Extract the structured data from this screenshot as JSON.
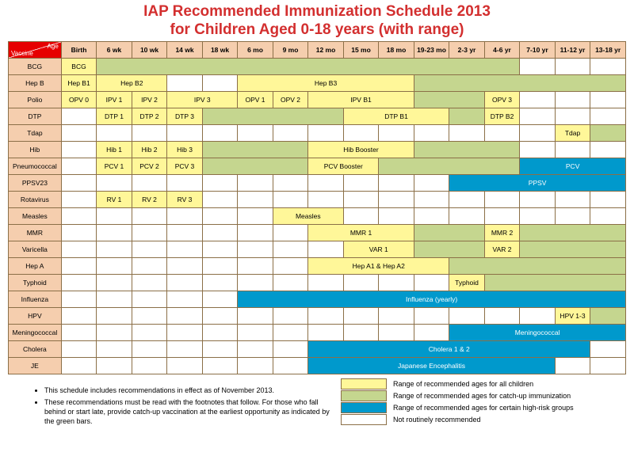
{
  "title_l1": "IAP Recommended Immunization Schedule 2013",
  "title_l2": "for Children Aged 0-18 years (with range)",
  "title_size": 19,
  "colors": {
    "header": "#f5ceae",
    "rowhead": "#f5ceae",
    "yellow": "#fff799",
    "green": "#c5d68f",
    "blue": "#0099cc",
    "white": "#ffffff",
    "border": "#8b6f47",
    "title": "#d32f2f"
  },
  "ages": [
    "Birth",
    "6 wk",
    "10 wk",
    "14 wk",
    "18 wk",
    "6 mo",
    "9 mo",
    "12 mo",
    "15 mo",
    "18 mo",
    "19-23 mo",
    "2-3 yr",
    "4-6 yr",
    "7-10 yr",
    "11-12 yr",
    "13-18 yr"
  ],
  "vaccines": [
    "BCG",
    "Hep B",
    "Polio",
    "DTP",
    "Tdap",
    "Hib",
    "Pneumococcal",
    "PPSV23",
    "Rotavirus",
    "Measles",
    "MMR",
    "Varicella",
    "Hep A",
    "Typhoid",
    "Influenza",
    "HPV",
    "Meningococcal",
    "Cholera",
    "JE"
  ],
  "rows": [
    [
      {
        "c": "y",
        "s": 1,
        "t": "BCG"
      },
      {
        "c": "g",
        "s": 12
      },
      {
        "c": "w",
        "s": 1
      },
      {
        "c": "w",
        "s": 1
      },
      {
        "c": "w",
        "s": 1
      }
    ],
    [
      {
        "c": "y",
        "s": 1,
        "t": "Hep B1"
      },
      {
        "c": "y",
        "s": 2,
        "t": "Hep B2"
      },
      {
        "c": "w",
        "s": 1
      },
      {
        "c": "w",
        "s": 1
      },
      {
        "c": "y",
        "s": 5,
        "t": "Hep B3"
      },
      {
        "c": "g",
        "s": 6
      }
    ],
    [
      {
        "c": "y",
        "s": 1,
        "t": "OPV 0"
      },
      {
        "c": "y",
        "s": 1,
        "t": "IPV 1"
      },
      {
        "c": "y",
        "s": 1,
        "t": "IPV 2"
      },
      {
        "c": "y",
        "s": 2,
        "t": "IPV 3"
      },
      {
        "c": "y",
        "s": 1,
        "t": "OPV 1"
      },
      {
        "c": "y",
        "s": 1,
        "t": "OPV 2"
      },
      {
        "c": "y",
        "s": 3,
        "t": "IPV B1"
      },
      {
        "c": "g",
        "s": 2
      },
      {
        "c": "y",
        "s": 1,
        "t": "OPV 3"
      },
      {
        "c": "w",
        "s": 1
      },
      {
        "c": "w",
        "s": 1
      },
      {
        "c": "w",
        "s": 1
      }
    ],
    [
      {
        "c": "w",
        "s": 1
      },
      {
        "c": "y",
        "s": 1,
        "t": "DTP 1"
      },
      {
        "c": "y",
        "s": 1,
        "t": "DTP 2"
      },
      {
        "c": "y",
        "s": 1,
        "t": "DTP 3"
      },
      {
        "c": "g",
        "s": 4
      },
      {
        "c": "y",
        "s": 3,
        "t": "DTP B1"
      },
      {
        "c": "g",
        "s": 1
      },
      {
        "c": "y",
        "s": 1,
        "t": "DTP B2"
      },
      {
        "c": "w",
        "s": 1
      },
      {
        "c": "w",
        "s": 1
      },
      {
        "c": "w",
        "s": 1
      }
    ],
    [
      {
        "c": "w",
        "s": 1
      },
      {
        "c": "w",
        "s": 1
      },
      {
        "c": "w",
        "s": 1
      },
      {
        "c": "w",
        "s": 1
      },
      {
        "c": "w",
        "s": 1
      },
      {
        "c": "w",
        "s": 1
      },
      {
        "c": "w",
        "s": 1
      },
      {
        "c": "w",
        "s": 1
      },
      {
        "c": "w",
        "s": 1
      },
      {
        "c": "w",
        "s": 1
      },
      {
        "c": "w",
        "s": 1
      },
      {
        "c": "w",
        "s": 1
      },
      {
        "c": "w",
        "s": 1
      },
      {
        "c": "w",
        "s": 1
      },
      {
        "c": "y",
        "s": 1,
        "t": "Tdap"
      },
      {
        "c": "g",
        "s": 1
      }
    ],
    [
      {
        "c": "w",
        "s": 1
      },
      {
        "c": "y",
        "s": 1,
        "t": "Hib 1"
      },
      {
        "c": "y",
        "s": 1,
        "t": "Hib 2"
      },
      {
        "c": "y",
        "s": 1,
        "t": "Hib 3"
      },
      {
        "c": "g",
        "s": 3
      },
      {
        "c": "y",
        "s": 3,
        "t": "Hib Booster"
      },
      {
        "c": "g",
        "s": 3
      },
      {
        "c": "w",
        "s": 1
      },
      {
        "c": "w",
        "s": 1
      },
      {
        "c": "w",
        "s": 1
      }
    ],
    [
      {
        "c": "w",
        "s": 1
      },
      {
        "c": "y",
        "s": 1,
        "t": "PCV 1"
      },
      {
        "c": "y",
        "s": 1,
        "t": "PCV 2"
      },
      {
        "c": "y",
        "s": 1,
        "t": "PCV 3"
      },
      {
        "c": "g",
        "s": 3
      },
      {
        "c": "y",
        "s": 2,
        "t": "PCV Booster"
      },
      {
        "c": "g",
        "s": 4
      },
      {
        "c": "b",
        "s": 3,
        "t": "PCV"
      }
    ],
    [
      {
        "c": "w",
        "s": 1
      },
      {
        "c": "w",
        "s": 1
      },
      {
        "c": "w",
        "s": 1
      },
      {
        "c": "w",
        "s": 1
      },
      {
        "c": "w",
        "s": 1
      },
      {
        "c": "w",
        "s": 1
      },
      {
        "c": "w",
        "s": 1
      },
      {
        "c": "w",
        "s": 1
      },
      {
        "c": "w",
        "s": 1
      },
      {
        "c": "w",
        "s": 1
      },
      {
        "c": "w",
        "s": 1
      },
      {
        "c": "b",
        "s": 5,
        "t": "PPSV"
      }
    ],
    [
      {
        "c": "w",
        "s": 1
      },
      {
        "c": "y",
        "s": 1,
        "t": "RV 1"
      },
      {
        "c": "y",
        "s": 1,
        "t": "RV 2"
      },
      {
        "c": "y",
        "s": 1,
        "t": "RV 3"
      },
      {
        "c": "w",
        "s": 1
      },
      {
        "c": "w",
        "s": 1
      },
      {
        "c": "w",
        "s": 1
      },
      {
        "c": "w",
        "s": 1
      },
      {
        "c": "w",
        "s": 1
      },
      {
        "c": "w",
        "s": 1
      },
      {
        "c": "w",
        "s": 1
      },
      {
        "c": "w",
        "s": 1
      },
      {
        "c": "w",
        "s": 1
      },
      {
        "c": "w",
        "s": 1
      },
      {
        "c": "w",
        "s": 1
      },
      {
        "c": "w",
        "s": 1
      }
    ],
    [
      {
        "c": "w",
        "s": 1
      },
      {
        "c": "w",
        "s": 1
      },
      {
        "c": "w",
        "s": 1
      },
      {
        "c": "w",
        "s": 1
      },
      {
        "c": "w",
        "s": 1
      },
      {
        "c": "w",
        "s": 1
      },
      {
        "c": "y",
        "s": 2,
        "t": "Measles"
      },
      {
        "c": "w",
        "s": 1
      },
      {
        "c": "w",
        "s": 1
      },
      {
        "c": "w",
        "s": 1
      },
      {
        "c": "w",
        "s": 1
      },
      {
        "c": "w",
        "s": 1
      },
      {
        "c": "w",
        "s": 1
      },
      {
        "c": "w",
        "s": 1
      },
      {
        "c": "w",
        "s": 1
      }
    ],
    [
      {
        "c": "w",
        "s": 1
      },
      {
        "c": "w",
        "s": 1
      },
      {
        "c": "w",
        "s": 1
      },
      {
        "c": "w",
        "s": 1
      },
      {
        "c": "w",
        "s": 1
      },
      {
        "c": "w",
        "s": 1
      },
      {
        "c": "w",
        "s": 1
      },
      {
        "c": "y",
        "s": 3,
        "t": "MMR 1"
      },
      {
        "c": "g",
        "s": 2
      },
      {
        "c": "y",
        "s": 1,
        "t": "MMR 2"
      },
      {
        "c": "g",
        "s": 3
      }
    ],
    [
      {
        "c": "w",
        "s": 1
      },
      {
        "c": "w",
        "s": 1
      },
      {
        "c": "w",
        "s": 1
      },
      {
        "c": "w",
        "s": 1
      },
      {
        "c": "w",
        "s": 1
      },
      {
        "c": "w",
        "s": 1
      },
      {
        "c": "w",
        "s": 1
      },
      {
        "c": "w",
        "s": 1
      },
      {
        "c": "y",
        "s": 2,
        "t": "VAR 1"
      },
      {
        "c": "g",
        "s": 2
      },
      {
        "c": "y",
        "s": 1,
        "t": "VAR 2"
      },
      {
        "c": "g",
        "s": 3
      }
    ],
    [
      {
        "c": "w",
        "s": 1
      },
      {
        "c": "w",
        "s": 1
      },
      {
        "c": "w",
        "s": 1
      },
      {
        "c": "w",
        "s": 1
      },
      {
        "c": "w",
        "s": 1
      },
      {
        "c": "w",
        "s": 1
      },
      {
        "c": "w",
        "s": 1
      },
      {
        "c": "y",
        "s": 4,
        "t": "Hep A1 & Hep A2"
      },
      {
        "c": "g",
        "s": 5
      }
    ],
    [
      {
        "c": "w",
        "s": 1
      },
      {
        "c": "w",
        "s": 1
      },
      {
        "c": "w",
        "s": 1
      },
      {
        "c": "w",
        "s": 1
      },
      {
        "c": "w",
        "s": 1
      },
      {
        "c": "w",
        "s": 1
      },
      {
        "c": "w",
        "s": 1
      },
      {
        "c": "w",
        "s": 1
      },
      {
        "c": "w",
        "s": 1
      },
      {
        "c": "w",
        "s": 1
      },
      {
        "c": "w",
        "s": 1
      },
      {
        "c": "y",
        "s": 1,
        "t": "Typhoid"
      },
      {
        "c": "g",
        "s": 4
      }
    ],
    [
      {
        "c": "w",
        "s": 1
      },
      {
        "c": "w",
        "s": 1
      },
      {
        "c": "w",
        "s": 1
      },
      {
        "c": "w",
        "s": 1
      },
      {
        "c": "w",
        "s": 1
      },
      {
        "c": "b",
        "s": 11,
        "t": "Influenza (yearly)"
      }
    ],
    [
      {
        "c": "w",
        "s": 1
      },
      {
        "c": "w",
        "s": 1
      },
      {
        "c": "w",
        "s": 1
      },
      {
        "c": "w",
        "s": 1
      },
      {
        "c": "w",
        "s": 1
      },
      {
        "c": "w",
        "s": 1
      },
      {
        "c": "w",
        "s": 1
      },
      {
        "c": "w",
        "s": 1
      },
      {
        "c": "w",
        "s": 1
      },
      {
        "c": "w",
        "s": 1
      },
      {
        "c": "w",
        "s": 1
      },
      {
        "c": "w",
        "s": 1
      },
      {
        "c": "w",
        "s": 1
      },
      {
        "c": "w",
        "s": 1
      },
      {
        "c": "y",
        "s": 1,
        "t": "HPV 1-3"
      },
      {
        "c": "g",
        "s": 1
      }
    ],
    [
      {
        "c": "w",
        "s": 1
      },
      {
        "c": "w",
        "s": 1
      },
      {
        "c": "w",
        "s": 1
      },
      {
        "c": "w",
        "s": 1
      },
      {
        "c": "w",
        "s": 1
      },
      {
        "c": "w",
        "s": 1
      },
      {
        "c": "w",
        "s": 1
      },
      {
        "c": "w",
        "s": 1
      },
      {
        "c": "w",
        "s": 1
      },
      {
        "c": "w",
        "s": 1
      },
      {
        "c": "w",
        "s": 1
      },
      {
        "c": "b",
        "s": 5,
        "t": "Meningococcal"
      }
    ],
    [
      {
        "c": "w",
        "s": 1
      },
      {
        "c": "w",
        "s": 1
      },
      {
        "c": "w",
        "s": 1
      },
      {
        "c": "w",
        "s": 1
      },
      {
        "c": "w",
        "s": 1
      },
      {
        "c": "w",
        "s": 1
      },
      {
        "c": "w",
        "s": 1
      },
      {
        "c": "b",
        "s": 8,
        "t": "Cholera 1 & 2"
      },
      {
        "c": "w",
        "s": 1
      }
    ],
    [
      {
        "c": "w",
        "s": 1
      },
      {
        "c": "w",
        "s": 1
      },
      {
        "c": "w",
        "s": 1
      },
      {
        "c": "w",
        "s": 1
      },
      {
        "c": "w",
        "s": 1
      },
      {
        "c": "w",
        "s": 1
      },
      {
        "c": "w",
        "s": 1
      },
      {
        "c": "b",
        "s": 7,
        "t": "Japanese Encephalitis"
      },
      {
        "c": "w",
        "s": 1
      },
      {
        "c": "w",
        "s": 1
      }
    ]
  ],
  "notes": [
    "This schedule includes recommendations in effect as of November 2013.",
    "These recommendations must be read with the footnotes that follow. For those who fall behind or start late, provide catch-up vaccination at the earliest opportunity as indicated by the green bars."
  ],
  "legend": [
    {
      "c": "y",
      "t": "Range of recommended ages for all children"
    },
    {
      "c": "g",
      "t": "Range of recommended ages for catch-up immunization"
    },
    {
      "c": "b",
      "t": "Range of recommended ages for certain high-risk groups"
    },
    {
      "c": "w",
      "t": "Not routinely recommended"
    }
  ],
  "corner": {
    "age": "Age",
    "vaccine": "Vaccine"
  }
}
